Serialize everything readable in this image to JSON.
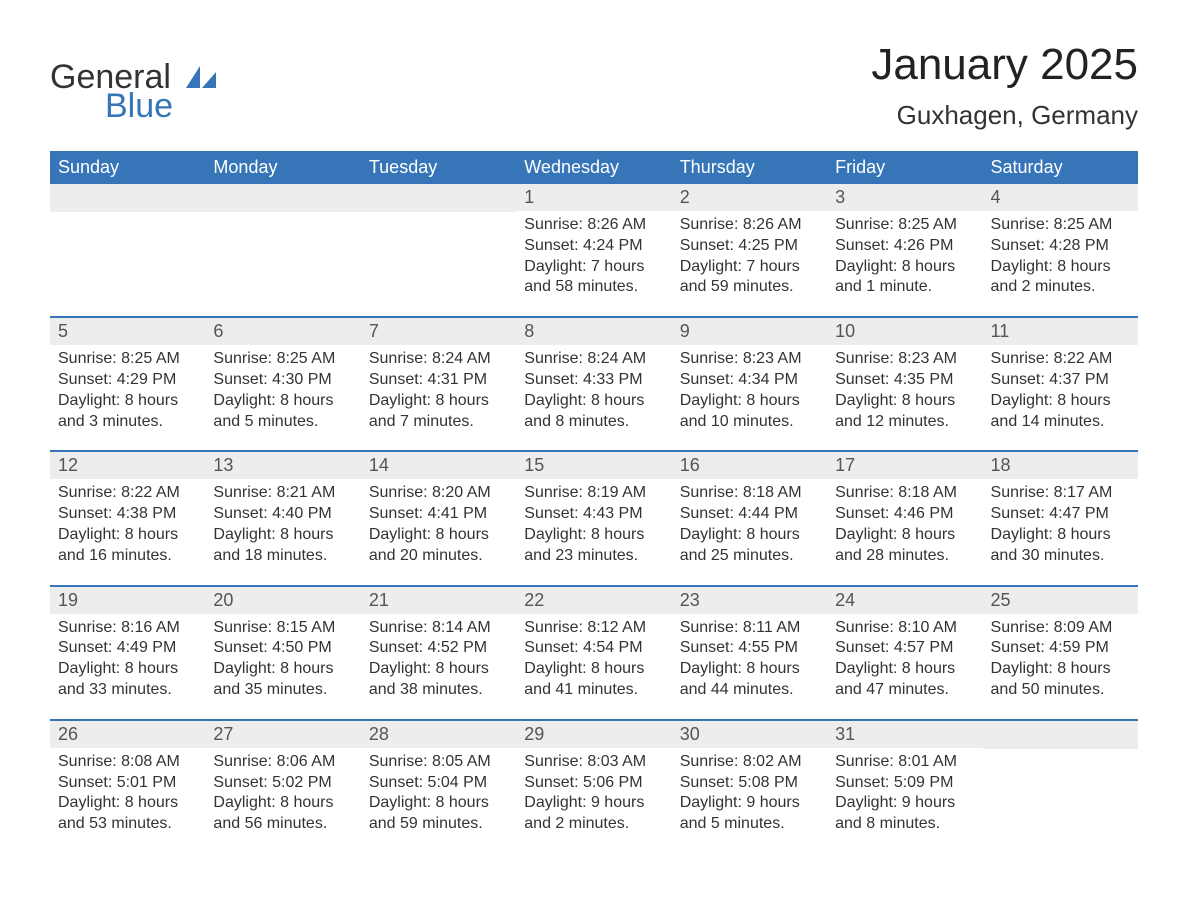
{
  "logo": {
    "text_general": "General",
    "text_blue": "Blue",
    "icon_color": "#3575b8"
  },
  "title": "January 2025",
  "subtitle": "Guxhagen, Germany",
  "theme": {
    "header_bg": "#3575b8",
    "header_text": "#ffffff",
    "daynum_bg": "#ededed",
    "week_border": "#3575b8",
    "body_text": "#333333"
  },
  "weekdays": [
    "Sunday",
    "Monday",
    "Tuesday",
    "Wednesday",
    "Thursday",
    "Friday",
    "Saturday"
  ],
  "weeks": [
    [
      null,
      null,
      null,
      {
        "n": "1",
        "sunrise": "Sunrise: 8:26 AM",
        "sunset": "Sunset: 4:24 PM",
        "day1": "Daylight: 7 hours",
        "day2": "and 58 minutes."
      },
      {
        "n": "2",
        "sunrise": "Sunrise: 8:26 AM",
        "sunset": "Sunset: 4:25 PM",
        "day1": "Daylight: 7 hours",
        "day2": "and 59 minutes."
      },
      {
        "n": "3",
        "sunrise": "Sunrise: 8:25 AM",
        "sunset": "Sunset: 4:26 PM",
        "day1": "Daylight: 8 hours",
        "day2": "and 1 minute."
      },
      {
        "n": "4",
        "sunrise": "Sunrise: 8:25 AM",
        "sunset": "Sunset: 4:28 PM",
        "day1": "Daylight: 8 hours",
        "day2": "and 2 minutes."
      }
    ],
    [
      {
        "n": "5",
        "sunrise": "Sunrise: 8:25 AM",
        "sunset": "Sunset: 4:29 PM",
        "day1": "Daylight: 8 hours",
        "day2": "and 3 minutes."
      },
      {
        "n": "6",
        "sunrise": "Sunrise: 8:25 AM",
        "sunset": "Sunset: 4:30 PM",
        "day1": "Daylight: 8 hours",
        "day2": "and 5 minutes."
      },
      {
        "n": "7",
        "sunrise": "Sunrise: 8:24 AM",
        "sunset": "Sunset: 4:31 PM",
        "day1": "Daylight: 8 hours",
        "day2": "and 7 minutes."
      },
      {
        "n": "8",
        "sunrise": "Sunrise: 8:24 AM",
        "sunset": "Sunset: 4:33 PM",
        "day1": "Daylight: 8 hours",
        "day2": "and 8 minutes."
      },
      {
        "n": "9",
        "sunrise": "Sunrise: 8:23 AM",
        "sunset": "Sunset: 4:34 PM",
        "day1": "Daylight: 8 hours",
        "day2": "and 10 minutes."
      },
      {
        "n": "10",
        "sunrise": "Sunrise: 8:23 AM",
        "sunset": "Sunset: 4:35 PM",
        "day1": "Daylight: 8 hours",
        "day2": "and 12 minutes."
      },
      {
        "n": "11",
        "sunrise": "Sunrise: 8:22 AM",
        "sunset": "Sunset: 4:37 PM",
        "day1": "Daylight: 8 hours",
        "day2": "and 14 minutes."
      }
    ],
    [
      {
        "n": "12",
        "sunrise": "Sunrise: 8:22 AM",
        "sunset": "Sunset: 4:38 PM",
        "day1": "Daylight: 8 hours",
        "day2": "and 16 minutes."
      },
      {
        "n": "13",
        "sunrise": "Sunrise: 8:21 AM",
        "sunset": "Sunset: 4:40 PM",
        "day1": "Daylight: 8 hours",
        "day2": "and 18 minutes."
      },
      {
        "n": "14",
        "sunrise": "Sunrise: 8:20 AM",
        "sunset": "Sunset: 4:41 PM",
        "day1": "Daylight: 8 hours",
        "day2": "and 20 minutes."
      },
      {
        "n": "15",
        "sunrise": "Sunrise: 8:19 AM",
        "sunset": "Sunset: 4:43 PM",
        "day1": "Daylight: 8 hours",
        "day2": "and 23 minutes."
      },
      {
        "n": "16",
        "sunrise": "Sunrise: 8:18 AM",
        "sunset": "Sunset: 4:44 PM",
        "day1": "Daylight: 8 hours",
        "day2": "and 25 minutes."
      },
      {
        "n": "17",
        "sunrise": "Sunrise: 8:18 AM",
        "sunset": "Sunset: 4:46 PM",
        "day1": "Daylight: 8 hours",
        "day2": "and 28 minutes."
      },
      {
        "n": "18",
        "sunrise": "Sunrise: 8:17 AM",
        "sunset": "Sunset: 4:47 PM",
        "day1": "Daylight: 8 hours",
        "day2": "and 30 minutes."
      }
    ],
    [
      {
        "n": "19",
        "sunrise": "Sunrise: 8:16 AM",
        "sunset": "Sunset: 4:49 PM",
        "day1": "Daylight: 8 hours",
        "day2": "and 33 minutes."
      },
      {
        "n": "20",
        "sunrise": "Sunrise: 8:15 AM",
        "sunset": "Sunset: 4:50 PM",
        "day1": "Daylight: 8 hours",
        "day2": "and 35 minutes."
      },
      {
        "n": "21",
        "sunrise": "Sunrise: 8:14 AM",
        "sunset": "Sunset: 4:52 PM",
        "day1": "Daylight: 8 hours",
        "day2": "and 38 minutes."
      },
      {
        "n": "22",
        "sunrise": "Sunrise: 8:12 AM",
        "sunset": "Sunset: 4:54 PM",
        "day1": "Daylight: 8 hours",
        "day2": "and 41 minutes."
      },
      {
        "n": "23",
        "sunrise": "Sunrise: 8:11 AM",
        "sunset": "Sunset: 4:55 PM",
        "day1": "Daylight: 8 hours",
        "day2": "and 44 minutes."
      },
      {
        "n": "24",
        "sunrise": "Sunrise: 8:10 AM",
        "sunset": "Sunset: 4:57 PM",
        "day1": "Daylight: 8 hours",
        "day2": "and 47 minutes."
      },
      {
        "n": "25",
        "sunrise": "Sunrise: 8:09 AM",
        "sunset": "Sunset: 4:59 PM",
        "day1": "Daylight: 8 hours",
        "day2": "and 50 minutes."
      }
    ],
    [
      {
        "n": "26",
        "sunrise": "Sunrise: 8:08 AM",
        "sunset": "Sunset: 5:01 PM",
        "day1": "Daylight: 8 hours",
        "day2": "and 53 minutes."
      },
      {
        "n": "27",
        "sunrise": "Sunrise: 8:06 AM",
        "sunset": "Sunset: 5:02 PM",
        "day1": "Daylight: 8 hours",
        "day2": "and 56 minutes."
      },
      {
        "n": "28",
        "sunrise": "Sunrise: 8:05 AM",
        "sunset": "Sunset: 5:04 PM",
        "day1": "Daylight: 8 hours",
        "day2": "and 59 minutes."
      },
      {
        "n": "29",
        "sunrise": "Sunrise: 8:03 AM",
        "sunset": "Sunset: 5:06 PM",
        "day1": "Daylight: 9 hours",
        "day2": "and 2 minutes."
      },
      {
        "n": "30",
        "sunrise": "Sunrise: 8:02 AM",
        "sunset": "Sunset: 5:08 PM",
        "day1": "Daylight: 9 hours",
        "day2": "and 5 minutes."
      },
      {
        "n": "31",
        "sunrise": "Sunrise: 8:01 AM",
        "sunset": "Sunset: 5:09 PM",
        "day1": "Daylight: 9 hours",
        "day2": "and 8 minutes."
      },
      null
    ]
  ]
}
